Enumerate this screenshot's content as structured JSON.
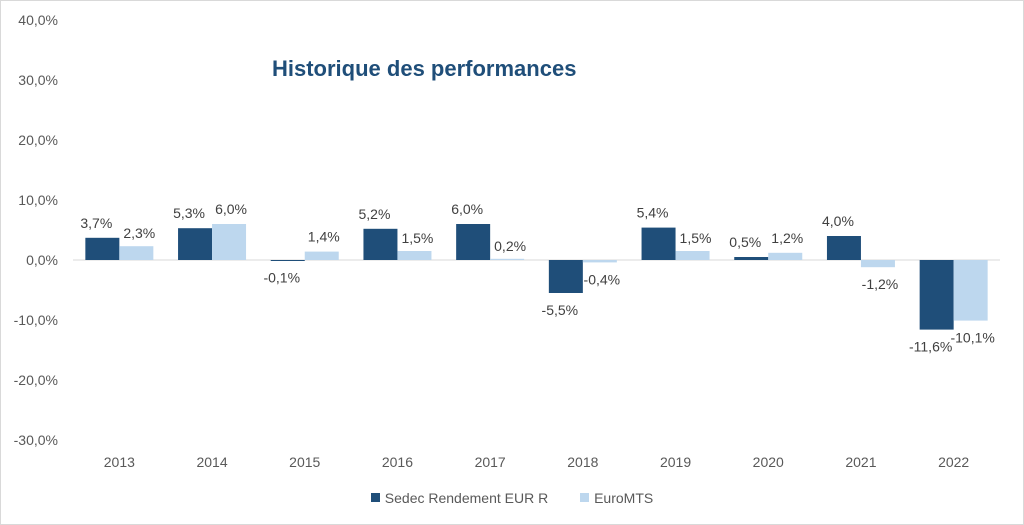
{
  "chart_data": {
    "type": "bar",
    "title": "Historique des performances",
    "xlabel": "",
    "ylabel": "",
    "categories": [
      "2013",
      "2014",
      "2015",
      "2016",
      "2017",
      "2018",
      "2019",
      "2020",
      "2021",
      "2022"
    ],
    "series": [
      {
        "name": "Sedec Rendement EUR R",
        "color": "#1f4e79",
        "values": [
          3.7,
          5.3,
          -0.1,
          5.2,
          6.0,
          -5.5,
          5.4,
          0.5,
          4.0,
          -11.6
        ],
        "labels": [
          "3,7%",
          "5,3%",
          "-0,1%",
          "5,2%",
          "6,0%",
          "-5,5%",
          "5,4%",
          "0,5%",
          "4,0%",
          "-11,6%"
        ]
      },
      {
        "name": "EuroMTS",
        "color": "#bdd7ee",
        "values": [
          2.3,
          6.0,
          1.4,
          1.5,
          0.2,
          -0.4,
          1.5,
          1.2,
          -1.2,
          -10.1
        ],
        "labels": [
          "2,3%",
          "6,0%",
          "1,4%",
          "1,5%",
          "0,2%",
          "-0,4%",
          "1,5%",
          "1,2%",
          "-1,2%",
          "-10,1%"
        ]
      }
    ],
    "ylim": [
      -30,
      40
    ],
    "yticks": [
      40,
      30,
      20,
      10,
      0,
      -10,
      -20,
      -30
    ],
    "ytick_labels": [
      "40,0%",
      "30,0%",
      "20,0%",
      "10,0%",
      "0,0%",
      "-10,0%",
      "-20,0%",
      "-30,0%"
    ],
    "grid": false,
    "legend_position": "bottom"
  }
}
